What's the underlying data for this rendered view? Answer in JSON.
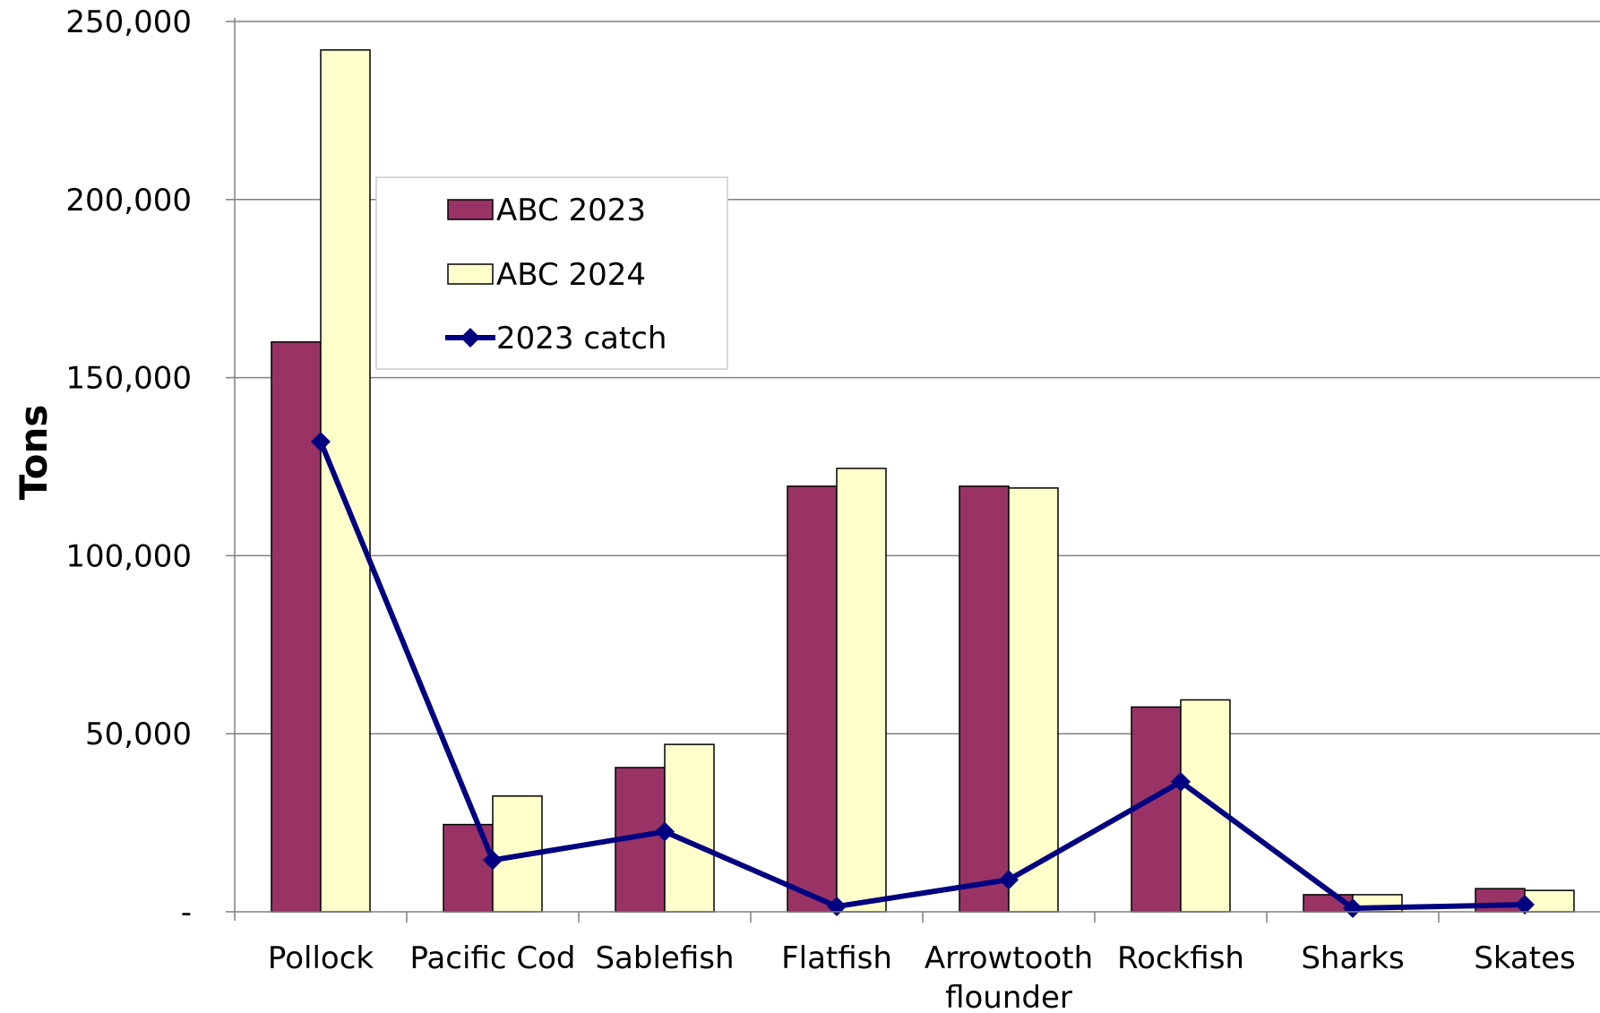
{
  "chart_data": {
    "type": "bar",
    "ylabel": "Tons",
    "ylim": [
      0,
      250000
    ],
    "yticks": [
      {
        "value": 0,
        "label": "-"
      },
      {
        "value": 50000,
        "label": "50,000"
      },
      {
        "value": 100000,
        "label": "100,000"
      },
      {
        "value": 150000,
        "label": "150,000"
      },
      {
        "value": 200000,
        "label": "200,000"
      },
      {
        "value": 250000,
        "label": "250,000"
      }
    ],
    "categories": [
      [
        "Pollock"
      ],
      [
        "Pacific Cod"
      ],
      [
        "Sablefish"
      ],
      [
        "Flatfish"
      ],
      [
        "Arrowtooth",
        "flounder"
      ],
      [
        "Rockfish"
      ],
      [
        "Sharks"
      ],
      [
        "Skates"
      ]
    ],
    "series": [
      {
        "name": "ABC 2023",
        "kind": "bar",
        "color": "#993366",
        "values": [
          160000,
          24500,
          40500,
          119500,
          119500,
          57500,
          4800,
          6500
        ]
      },
      {
        "name": "ABC 2024",
        "kind": "bar",
        "color": "#FFFFCC",
        "values": [
          242000,
          32500,
          47000,
          124500,
          119000,
          59500,
          4800,
          6000
        ]
      },
      {
        "name": "2023 catch",
        "kind": "line",
        "color": "#000080",
        "values": [
          132000,
          14500,
          22500,
          1500,
          9000,
          36500,
          1000,
          2000
        ]
      }
    ],
    "grid": true,
    "legend_position": "upper-left inside plot"
  }
}
